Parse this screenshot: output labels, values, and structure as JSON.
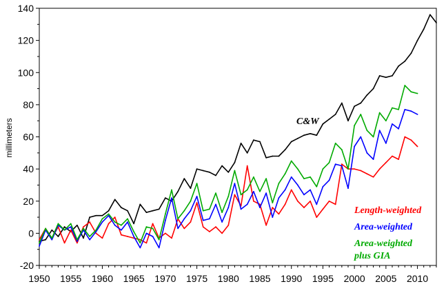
{
  "chart_data": {
    "type": "line",
    "title": "",
    "xlabel": "",
    "ylabel": "millimeters",
    "xlim": [
      1950,
      2013
    ],
    "ylim": [
      -20,
      140
    ],
    "xticks": [
      1950,
      1955,
      1960,
      1965,
      1970,
      1975,
      1980,
      1985,
      1990,
      1995,
      2000,
      2005,
      2010
    ],
    "yticks": [
      -20,
      0,
      20,
      40,
      60,
      80,
      100,
      120,
      140
    ],
    "grid": false,
    "series": [
      {
        "name": "C&W",
        "label_lines": [
          "C&W"
        ],
        "color": "#000000",
        "x": [
          1950,
          1951,
          1952,
          1953,
          1954,
          1955,
          1956,
          1957,
          1958,
          1959,
          1960,
          1961,
          1962,
          1963,
          1964,
          1965,
          1966,
          1967,
          1968,
          1969,
          1970,
          1971,
          1972,
          1973,
          1974,
          1975,
          1976,
          1977,
          1978,
          1979,
          1980,
          1981,
          1982,
          1983,
          1984,
          1985,
          1986,
          1987,
          1988,
          1989,
          1990,
          1991,
          1992,
          1993,
          1994,
          1995,
          1996,
          1997,
          1998,
          1999,
          2000,
          2001,
          2002,
          2003,
          2004,
          2005,
          2006,
          2007,
          2008,
          2009,
          2010,
          2011,
          2012,
          2013
        ],
        "values": [
          -5,
          -4,
          2,
          -2,
          4,
          1,
          5,
          -3,
          10,
          11,
          11,
          14,
          21,
          16,
          14,
          6,
          18,
          13,
          14,
          15,
          22,
          20,
          26,
          34,
          28,
          40,
          39,
          38,
          36,
          42,
          38,
          44,
          56,
          50,
          58,
          57,
          47,
          48,
          48,
          52,
          57,
          59,
          61,
          62,
          61,
          68,
          71,
          74,
          81,
          70,
          79,
          81,
          86,
          90,
          98,
          97,
          98,
          104,
          107,
          112,
          120,
          127,
          136,
          131
        ]
      },
      {
        "name": "Length-weighted",
        "label_lines": [
          "Length-weighted"
        ],
        "color": "#ff0000",
        "x": [
          1950,
          1951,
          1952,
          1953,
          1954,
          1955,
          1956,
          1957,
          1958,
          1959,
          1960,
          1961,
          1962,
          1963,
          1964,
          1965,
          1966,
          1967,
          1968,
          1969,
          1970,
          1971,
          1972,
          1973,
          1974,
          1975,
          1976,
          1977,
          1978,
          1979,
          1980,
          1981,
          1982,
          1983,
          1984,
          1985,
          1986,
          1987,
          1988,
          1989,
          1990,
          1991,
          1992,
          1993,
          1994,
          1995,
          1996,
          1997,
          1998,
          1999,
          2000,
          2001,
          2002,
          2003,
          2004,
          2005,
          2006,
          2007,
          2008,
          2009,
          2010
        ],
        "values": [
          -4,
          3,
          -3,
          4,
          -6,
          2,
          -6,
          4,
          7,
          0,
          -3,
          6,
          10,
          -1,
          -2,
          -3,
          -4,
          -6,
          6,
          -3,
          0,
          -3,
          9,
          3,
          7,
          19,
          4,
          1,
          4,
          0,
          5,
          24,
          17,
          42,
          20,
          18,
          5,
          16,
          12,
          18,
          27,
          20,
          16,
          20,
          10,
          15,
          20,
          18,
          43,
          40,
          40,
          39,
          37,
          35,
          40,
          44,
          48,
          46,
          60,
          58,
          54
        ]
      },
      {
        "name": "Area-weighted",
        "label_lines": [
          "Area-weighted"
        ],
        "color": "#0000ff",
        "x": [
          1950,
          1951,
          1952,
          1953,
          1954,
          1955,
          1956,
          1957,
          1958,
          1959,
          1960,
          1961,
          1962,
          1963,
          1964,
          1965,
          1966,
          1967,
          1968,
          1969,
          1970,
          1971,
          1972,
          1973,
          1974,
          1975,
          1976,
          1977,
          1978,
          1979,
          1980,
          1981,
          1982,
          1983,
          1984,
          1985,
          1986,
          1987,
          1988,
          1989,
          1990,
          1991,
          1992,
          1993,
          1994,
          1995,
          1996,
          1997,
          1998,
          1999,
          2000,
          2001,
          2002,
          2003,
          2004,
          2005,
          2006,
          2007,
          2008,
          2009,
          2010
        ],
        "values": [
          -8,
          2,
          -4,
          5,
          2,
          4,
          -5,
          2,
          -4,
          1,
          7,
          11,
          5,
          2,
          7,
          -2,
          -9,
          0,
          -2,
          -9,
          8,
          22,
          3,
          9,
          14,
          23,
          8,
          9,
          18,
          7,
          16,
          31,
          15,
          18,
          26,
          16,
          25,
          10,
          22,
          27,
          35,
          30,
          24,
          27,
          18,
          29,
          33,
          43,
          42,
          28,
          54,
          60,
          50,
          46,
          64,
          56,
          68,
          65,
          77,
          76,
          74
        ]
      },
      {
        "name": "Area-weighted plus GIA",
        "label_lines": [
          "Area-weighted",
          "plus GIA"
        ],
        "color": "#00aa00",
        "x": [
          1950,
          1951,
          1952,
          1953,
          1954,
          1955,
          1956,
          1957,
          1958,
          1959,
          1960,
          1961,
          1962,
          1963,
          1964,
          1965,
          1966,
          1967,
          1968,
          1969,
          1970,
          1971,
          1972,
          1973,
          1974,
          1975,
          1976,
          1977,
          1978,
          1979,
          1980,
          1981,
          1982,
          1983,
          1984,
          1985,
          1986,
          1987,
          1988,
          1989,
          1990,
          1991,
          1992,
          1993,
          1994,
          1995,
          1996,
          1997,
          1998,
          1999,
          2000,
          2001,
          2002,
          2003,
          2004,
          2005,
          2006,
          2007,
          2008,
          2009,
          2010
        ],
        "values": [
          -6,
          3,
          -3,
          6,
          2,
          6,
          -4,
          3,
          -2,
          2,
          9,
          12,
          7,
          5,
          9,
          1,
          -6,
          4,
          3,
          -4,
          12,
          27,
          9,
          14,
          20,
          31,
          14,
          15,
          25,
          13,
          23,
          39,
          24,
          27,
          35,
          26,
          34,
          19,
          31,
          37,
          45,
          40,
          34,
          35,
          29,
          40,
          44,
          56,
          52,
          40,
          67,
          74,
          64,
          60,
          75,
          70,
          78,
          77,
          92,
          88,
          87
        ]
      }
    ]
  }
}
